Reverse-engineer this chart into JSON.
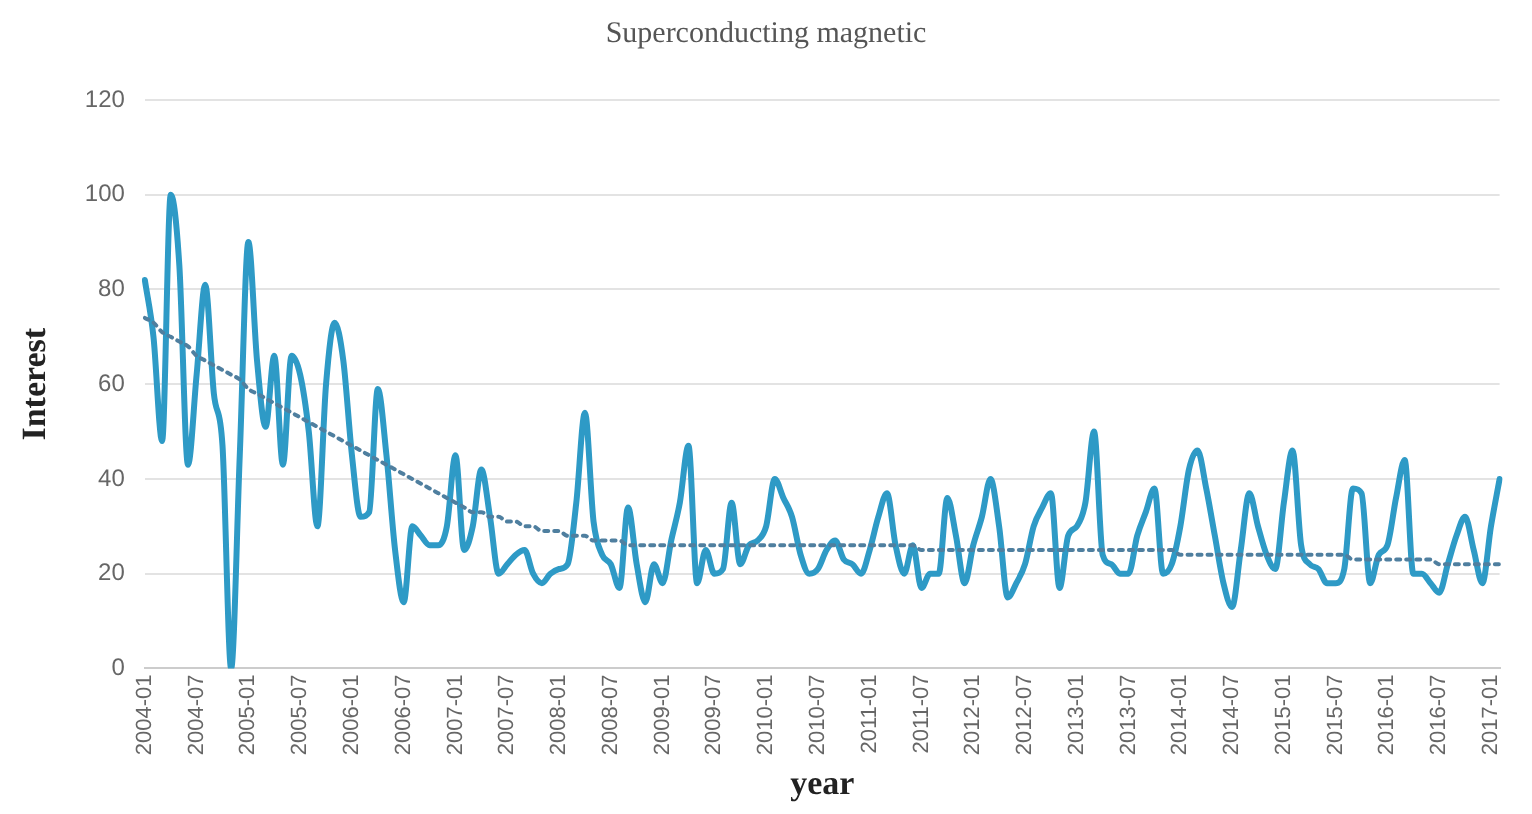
{
  "chart_data": {
    "type": "line",
    "title": "Superconducting magnetic",
    "xlabel": "year",
    "ylabel": "Interest",
    "categories": [
      "2004-01",
      null,
      null,
      null,
      null,
      null,
      "2004-07",
      null,
      null,
      null,
      null,
      null,
      "2005-01",
      null,
      null,
      null,
      null,
      null,
      "2005-07",
      null,
      null,
      null,
      null,
      null,
      "2006-01",
      null,
      null,
      null,
      null,
      null,
      "2006-07",
      null,
      null,
      null,
      null,
      null,
      "2007-01",
      null,
      null,
      null,
      null,
      null,
      "2007-07",
      null,
      null,
      null,
      null,
      null,
      "2008-01",
      null,
      null,
      null,
      null,
      null,
      "2008-07",
      null,
      null,
      null,
      null,
      null,
      "2009-01",
      null,
      null,
      null,
      null,
      null,
      "2009-07",
      null,
      null,
      null,
      null,
      null,
      "2010-01",
      null,
      null,
      null,
      null,
      null,
      "2010-07",
      null,
      null,
      null,
      null,
      null,
      "2011-01",
      null,
      null,
      null,
      null,
      null,
      "2011-07",
      null,
      null,
      null,
      null,
      null,
      "2012-01",
      null,
      null,
      null,
      null,
      null,
      "2012-07",
      null,
      null,
      null,
      null,
      null,
      "2013-01",
      null,
      null,
      null,
      null,
      null,
      "2013-07",
      null,
      null,
      null,
      null,
      null,
      "2014-01",
      null,
      null,
      null,
      null,
      null,
      "2014-07",
      null,
      null,
      null,
      null,
      null,
      "2015-01",
      null,
      null,
      null,
      null,
      null,
      "2015-07",
      null,
      null,
      null,
      null,
      null,
      "2016-01",
      null,
      null,
      null,
      null,
      null,
      "2016-07",
      null,
      null,
      null,
      null,
      null,
      "2017-01",
      null
    ],
    "series": [
      {
        "type": "line",
        "color": "#2e9ac6",
        "line_style": "solid",
        "values": [
          82,
          70,
          48,
          100,
          85,
          43,
          62,
          81,
          58,
          47,
          0,
          45,
          90,
          65,
          51,
          66,
          43,
          66,
          62,
          50,
          30,
          60,
          73,
          65,
          45,
          32,
          33,
          59,
          45,
          25,
          14,
          30,
          28,
          26,
          26,
          30,
          45,
          25,
          30,
          42,
          32,
          20,
          22,
          24,
          25,
          20,
          18,
          20,
          21,
          22,
          35,
          54,
          31,
          24,
          22,
          17,
          34,
          22,
          14,
          22,
          18,
          27,
          35,
          47,
          18,
          25,
          20,
          21,
          35,
          22,
          26,
          27,
          30,
          40,
          36,
          32,
          24,
          20,
          21,
          25,
          27,
          23,
          22,
          20,
          25,
          32,
          37,
          26,
          20,
          26,
          17,
          20,
          20,
          36,
          28,
          18,
          26,
          32,
          40,
          30,
          15,
          18,
          22,
          30,
          34,
          37,
          17,
          28,
          30,
          35,
          50,
          24,
          22,
          20,
          20,
          28,
          33,
          38,
          20,
          22,
          30,
          42,
          46,
          38,
          28,
          18,
          13,
          25,
          37,
          30,
          24,
          21,
          35,
          46,
          26,
          22,
          21,
          18,
          18,
          21,
          38,
          37,
          18,
          24,
          26,
          36,
          44,
          20,
          20,
          18,
          16,
          22,
          28,
          32,
          25,
          18,
          30,
          40
        ]
      },
      {
        "type": "line",
        "color": "#4f7f9f",
        "line_style": "dotted",
        "values": [
          74,
          73,
          71,
          70,
          69,
          68,
          66,
          65,
          64,
          63,
          62,
          61,
          59,
          58,
          57,
          56,
          55,
          54,
          53,
          52,
          51,
          50,
          49,
          48,
          47,
          46,
          45,
          44,
          43,
          42,
          41,
          40,
          39,
          38,
          37,
          36,
          35,
          34,
          33,
          33,
          32,
          32,
          31,
          31,
          30,
          30,
          29,
          29,
          29,
          28,
          28,
          28,
          27,
          27,
          27,
          27,
          26,
          26,
          26,
          26,
          26,
          26,
          26,
          26,
          26,
          26,
          26,
          26,
          26,
          26,
          26,
          26,
          26,
          26,
          26,
          26,
          26,
          26,
          26,
          26,
          26,
          26,
          26,
          26,
          26,
          26,
          26,
          26,
          26,
          26,
          25,
          25,
          25,
          25,
          25,
          25,
          25,
          25,
          25,
          25,
          25,
          25,
          25,
          25,
          25,
          25,
          25,
          25,
          25,
          25,
          25,
          25,
          25,
          25,
          25,
          25,
          25,
          25,
          25,
          25,
          24,
          24,
          24,
          24,
          24,
          24,
          24,
          24,
          24,
          24,
          24,
          24,
          24,
          24,
          24,
          24,
          24,
          24,
          24,
          24,
          23,
          23,
          23,
          23,
          23,
          23,
          23,
          23,
          23,
          23,
          22,
          22,
          22,
          22,
          22,
          22,
          22,
          22
        ]
      }
    ],
    "ylim": [
      0,
      120
    ],
    "yticks": [
      0,
      20,
      40,
      60,
      80,
      100,
      120
    ],
    "grid": "y",
    "legend": false,
    "marker": "none"
  }
}
